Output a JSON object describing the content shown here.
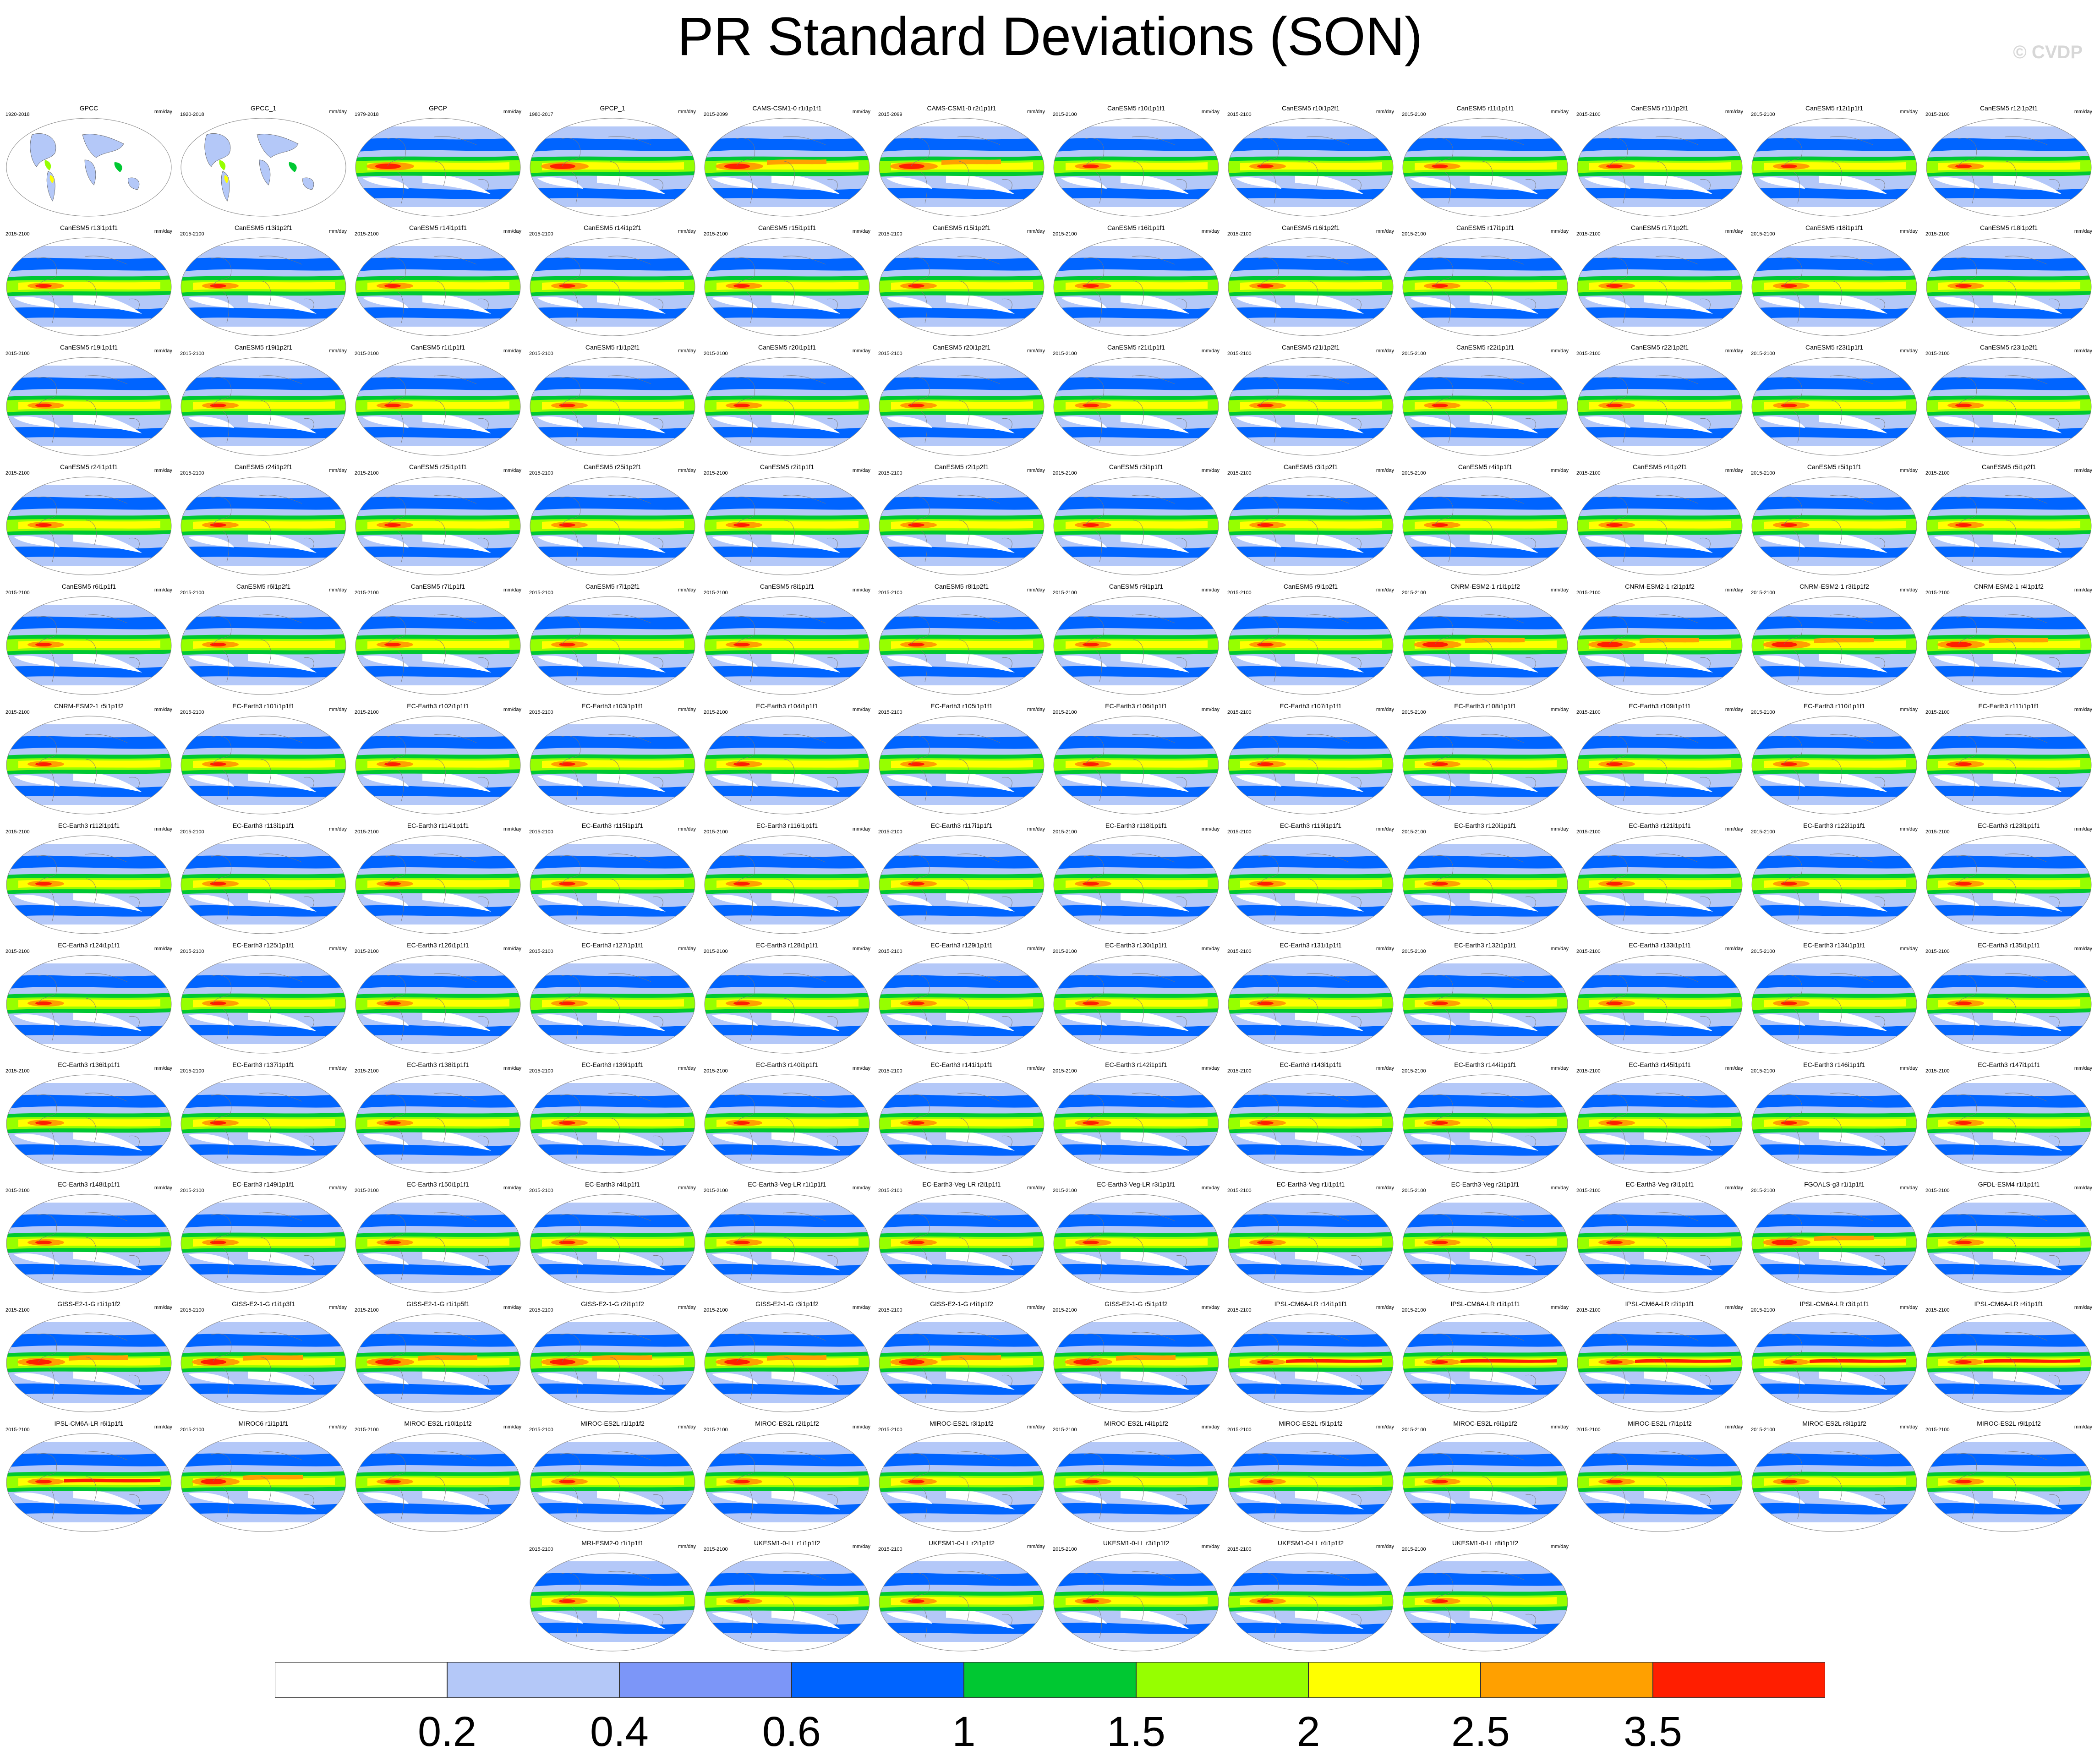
{
  "title": "PR Standard Deviations (SON)",
  "watermark": "© CVDP",
  "units": "mm/day",
  "colorbar": {
    "colors": [
      "#ffffff",
      "#b4c8f8",
      "#7c96f8",
      "#0064ff",
      "#00c832",
      "#96ff00",
      "#ffff00",
      "#ffa000",
      "#ff1e00"
    ],
    "labels": [
      "0.2",
      "0.4",
      "0.6",
      "1",
      "1.5",
      "2",
      "2.5",
      "3.5"
    ]
  },
  "panels": [
    {
      "title": "GPCC",
      "years": "1920-2018",
      "type": "obs_land"
    },
    {
      "title": "GPCC_1",
      "years": "1920-2018",
      "type": "obs_land"
    },
    {
      "title": "GPCP",
      "years": "1979-2018",
      "type": "obs"
    },
    {
      "title": "GPCP_1",
      "years": "1980-2017",
      "type": "obs"
    },
    {
      "title": "CAMS-CSM1-0 r1i1p1f1",
      "years": "2015-2099",
      "type": "model_hi"
    },
    {
      "title": "CAMS-CSM1-0 r2i1p1f1",
      "years": "2015-2099",
      "type": "model_hi"
    },
    {
      "title": "CanESM5 r10i1p1f1",
      "years": "2015-2100",
      "type": "model"
    },
    {
      "title": "CanESM5 r10i1p2f1",
      "years": "2015-2100",
      "type": "model"
    },
    {
      "title": "CanESM5 r11i1p1f1",
      "years": "2015-2100",
      "type": "model"
    },
    {
      "title": "CanESM5 r11i1p2f1",
      "years": "2015-2100",
      "type": "model"
    },
    {
      "title": "CanESM5 r12i1p1f1",
      "years": "2015-2100",
      "type": "model"
    },
    {
      "title": "CanESM5 r12i1p2f1",
      "years": "2015-2100",
      "type": "model"
    },
    {
      "title": "CanESM5 r13i1p1f1",
      "years": "2015-2100",
      "type": "model"
    },
    {
      "title": "CanESM5 r13i1p2f1",
      "years": "2015-2100",
      "type": "model"
    },
    {
      "title": "CanESM5 r14i1p1f1",
      "years": "2015-2100",
      "type": "model"
    },
    {
      "title": "CanESM5 r14i1p2f1",
      "years": "2015-2100",
      "type": "model"
    },
    {
      "title": "CanESM5 r15i1p1f1",
      "years": "2015-2100",
      "type": "model"
    },
    {
      "title": "CanESM5 r15i1p2f1",
      "years": "2015-2100",
      "type": "model"
    },
    {
      "title": "CanESM5 r16i1p1f1",
      "years": "2015-2100",
      "type": "model"
    },
    {
      "title": "CanESM5 r16i1p2f1",
      "years": "2015-2100",
      "type": "model"
    },
    {
      "title": "CanESM5 r17i1p1f1",
      "years": "2015-2100",
      "type": "model"
    },
    {
      "title": "CanESM5 r17i1p2f1",
      "years": "2015-2100",
      "type": "model"
    },
    {
      "title": "CanESM5 r18i1p1f1",
      "years": "2015-2100",
      "type": "model"
    },
    {
      "title": "CanESM5 r18i1p2f1",
      "years": "2015-2100",
      "type": "model"
    },
    {
      "title": "CanESM5 r19i1p1f1",
      "years": "2015-2100",
      "type": "model"
    },
    {
      "title": "CanESM5 r19i1p2f1",
      "years": "2015-2100",
      "type": "model"
    },
    {
      "title": "CanESM5 r1i1p1f1",
      "years": "2015-2100",
      "type": "model"
    },
    {
      "title": "CanESM5 r1i1p2f1",
      "years": "2015-2100",
      "type": "model"
    },
    {
      "title": "CanESM5 r20i1p1f1",
      "years": "2015-2100",
      "type": "model"
    },
    {
      "title": "CanESM5 r20i1p2f1",
      "years": "2015-2100",
      "type": "model"
    },
    {
      "title": "CanESM5 r21i1p1f1",
      "years": "2015-2100",
      "type": "model"
    },
    {
      "title": "CanESM5 r21i1p2f1",
      "years": "2015-2100",
      "type": "model"
    },
    {
      "title": "CanESM5 r22i1p1f1",
      "years": "2015-2100",
      "type": "model"
    },
    {
      "title": "CanESM5 r22i1p2f1",
      "years": "2015-2100",
      "type": "model"
    },
    {
      "title": "CanESM5 r23i1p1f1",
      "years": "2015-2100",
      "type": "model"
    },
    {
      "title": "CanESM5 r23i1p2f1",
      "years": "2015-2100",
      "type": "model"
    },
    {
      "title": "CanESM5 r24i1p1f1",
      "years": "2015-2100",
      "type": "model"
    },
    {
      "title": "CanESM5 r24i1p2f1",
      "years": "2015-2100",
      "type": "model"
    },
    {
      "title": "CanESM5 r25i1p1f1",
      "years": "2015-2100",
      "type": "model"
    },
    {
      "title": "CanESM5 r25i1p2f1",
      "years": "2015-2100",
      "type": "model"
    },
    {
      "title": "CanESM5 r2i1p1f1",
      "years": "2015-2100",
      "type": "model"
    },
    {
      "title": "CanESM5 r2i1p2f1",
      "years": "2015-2100",
      "type": "model"
    },
    {
      "title": "CanESM5 r3i1p1f1",
      "years": "2015-2100",
      "type": "model"
    },
    {
      "title": "CanESM5 r3i1p2f1",
      "years": "2015-2100",
      "type": "model"
    },
    {
      "title": "CanESM5 r4i1p1f1",
      "years": "2015-2100",
      "type": "model"
    },
    {
      "title": "CanESM5 r4i1p2f1",
      "years": "2015-2100",
      "type": "model"
    },
    {
      "title": "CanESM5 r5i1p1f1",
      "years": "2015-2100",
      "type": "model"
    },
    {
      "title": "CanESM5 r5i1p2f1",
      "years": "2015-2100",
      "type": "model"
    },
    {
      "title": "CanESM5 r6i1p1f1",
      "years": "2015-2100",
      "type": "model"
    },
    {
      "title": "CanESM5 r6i1p2f1",
      "years": "2015-2100",
      "type": "model"
    },
    {
      "title": "CanESM5 r7i1p1f1",
      "years": "2015-2100",
      "type": "model"
    },
    {
      "title": "CanESM5 r7i1p2f1",
      "years": "2015-2100",
      "type": "model"
    },
    {
      "title": "CanESM5 r8i1p1f1",
      "years": "2015-2100",
      "type": "model"
    },
    {
      "title": "CanESM5 r8i1p2f1",
      "years": "2015-2100",
      "type": "model"
    },
    {
      "title": "CanESM5 r9i1p1f1",
      "years": "2015-2100",
      "type": "model"
    },
    {
      "title": "CanESM5 r9i1p2f1",
      "years": "2015-2100",
      "type": "model"
    },
    {
      "title": "CNRM-ESM2-1 r1i1p1f2",
      "years": "2015-2100",
      "type": "model_hi"
    },
    {
      "title": "CNRM-ESM2-1 r2i1p1f2",
      "years": "2015-2100",
      "type": "model_hi"
    },
    {
      "title": "CNRM-ESM2-1 r3i1p1f2",
      "years": "2015-2100",
      "type": "model_hi"
    },
    {
      "title": "CNRM-ESM2-1 r4i1p1f2",
      "years": "2015-2100",
      "type": "model_hi"
    },
    {
      "title": "CNRM-ESM2-1 r5i1p1f2",
      "years": "2015-2100",
      "type": "model"
    },
    {
      "title": "EC-Earth3 r101i1p1f1",
      "years": "2015-2100",
      "type": "model"
    },
    {
      "title": "EC-Earth3 r102i1p1f1",
      "years": "2015-2100",
      "type": "model"
    },
    {
      "title": "EC-Earth3 r103i1p1f1",
      "years": "2015-2100",
      "type": "model"
    },
    {
      "title": "EC-Earth3 r104i1p1f1",
      "years": "2015-2100",
      "type": "model"
    },
    {
      "title": "EC-Earth3 r105i1p1f1",
      "years": "2015-2100",
      "type": "model"
    },
    {
      "title": "EC-Earth3 r106i1p1f1",
      "years": "2015-2100",
      "type": "model"
    },
    {
      "title": "EC-Earth3 r107i1p1f1",
      "years": "2015-2100",
      "type": "model"
    },
    {
      "title": "EC-Earth3 r108i1p1f1",
      "years": "2015-2100",
      "type": "model"
    },
    {
      "title": "EC-Earth3 r109i1p1f1",
      "years": "2015-2100",
      "type": "model"
    },
    {
      "title": "EC-Earth3 r110i1p1f1",
      "years": "2015-2100",
      "type": "model"
    },
    {
      "title": "EC-Earth3 r111i1p1f1",
      "years": "2015-2100",
      "type": "model"
    },
    {
      "title": "EC-Earth3 r112i1p1f1",
      "years": "2015-2100",
      "type": "model"
    },
    {
      "title": "EC-Earth3 r113i1p1f1",
      "years": "2015-2100",
      "type": "model"
    },
    {
      "title": "EC-Earth3 r114i1p1f1",
      "years": "2015-2100",
      "type": "model"
    },
    {
      "title": "EC-Earth3 r115i1p1f1",
      "years": "2015-2100",
      "type": "model"
    },
    {
      "title": "EC-Earth3 r116i1p1f1",
      "years": "2015-2100",
      "type": "model"
    },
    {
      "title": "EC-Earth3 r117i1p1f1",
      "years": "2015-2100",
      "type": "model"
    },
    {
      "title": "EC-Earth3 r118i1p1f1",
      "years": "2015-2100",
      "type": "model"
    },
    {
      "title": "EC-Earth3 r119i1p1f1",
      "years": "2015-2100",
      "type": "model"
    },
    {
      "title": "EC-Earth3 r120i1p1f1",
      "years": "2015-2100",
      "type": "model"
    },
    {
      "title": "EC-Earth3 r121i1p1f1",
      "years": "2015-2100",
      "type": "model"
    },
    {
      "title": "EC-Earth3 r122i1p1f1",
      "years": "2015-2100",
      "type": "model"
    },
    {
      "title": "EC-Earth3 r123i1p1f1",
      "years": "2015-2100",
      "type": "model"
    },
    {
      "title": "EC-Earth3 r124i1p1f1",
      "years": "2015-2100",
      "type": "model"
    },
    {
      "title": "EC-Earth3 r125i1p1f1",
      "years": "2015-2100",
      "type": "model"
    },
    {
      "title": "EC-Earth3 r126i1p1f1",
      "years": "2015-2100",
      "type": "model"
    },
    {
      "title": "EC-Earth3 r127i1p1f1",
      "years": "2015-2100",
      "type": "model"
    },
    {
      "title": "EC-Earth3 r128i1p1f1",
      "years": "2015-2100",
      "type": "model"
    },
    {
      "title": "EC-Earth3 r129i1p1f1",
      "years": "2015-2100",
      "type": "model"
    },
    {
      "title": "EC-Earth3 r130i1p1f1",
      "years": "2015-2100",
      "type": "model"
    },
    {
      "title": "EC-Earth3 r131i1p1f1",
      "years": "2015-2100",
      "type": "model"
    },
    {
      "title": "EC-Earth3 r132i1p1f1",
      "years": "2015-2100",
      "type": "model"
    },
    {
      "title": "EC-Earth3 r133i1p1f1",
      "years": "2015-2100",
      "type": "model"
    },
    {
      "title": "EC-Earth3 r134i1p1f1",
      "years": "2015-2100",
      "type": "model"
    },
    {
      "title": "EC-Earth3 r135i1p1f1",
      "years": "2015-2100",
      "type": "model"
    },
    {
      "title": "EC-Earth3 r136i1p1f1",
      "years": "2015-2100",
      "type": "model"
    },
    {
      "title": "EC-Earth3 r137i1p1f1",
      "years": "2015-2100",
      "type": "model"
    },
    {
      "title": "EC-Earth3 r138i1p1f1",
      "years": "2015-2100",
      "type": "model"
    },
    {
      "title": "EC-Earth3 r139i1p1f1",
      "years": "2015-2100",
      "type": "model"
    },
    {
      "title": "EC-Earth3 r140i1p1f1",
      "years": "2015-2100",
      "type": "model"
    },
    {
      "title": "EC-Earth3 r141i1p1f1",
      "years": "2015-2100",
      "type": "model"
    },
    {
      "title": "EC-Earth3 r142i1p1f1",
      "years": "2015-2100",
      "type": "model"
    },
    {
      "title": "EC-Earth3 r143i1p1f1",
      "years": "2015-2100",
      "type": "model"
    },
    {
      "title": "EC-Earth3 r144i1p1f1",
      "years": "2015-2100",
      "type": "model"
    },
    {
      "title": "EC-Earth3 r145i1p1f1",
      "years": "2015-2100",
      "type": "model"
    },
    {
      "title": "EC-Earth3 r146i1p1f1",
      "years": "2015-2100",
      "type": "model"
    },
    {
      "title": "EC-Earth3 r147i1p1f1",
      "years": "2015-2100",
      "type": "model"
    },
    {
      "title": "EC-Earth3 r148i1p1f1",
      "years": "2015-2100",
      "type": "model"
    },
    {
      "title": "EC-Earth3 r149i1p1f1",
      "years": "2015-2100",
      "type": "model"
    },
    {
      "title": "EC-Earth3 r150i1p1f1",
      "years": "2015-2100",
      "type": "model"
    },
    {
      "title": "EC-Earth3 r4i1p1f1",
      "years": "2015-2100",
      "type": "model"
    },
    {
      "title": "EC-Earth3-Veg-LR r1i1p1f1",
      "years": "2015-2100",
      "type": "model"
    },
    {
      "title": "EC-Earth3-Veg-LR r2i1p1f1",
      "years": "2015-2100",
      "type": "model"
    },
    {
      "title": "EC-Earth3-Veg-LR r3i1p1f1",
      "years": "2015-2100",
      "type": "model"
    },
    {
      "title": "EC-Earth3-Veg r1i1p1f1",
      "years": "2015-2100",
      "type": "model"
    },
    {
      "title": "EC-Earth3-Veg r2i1p1f1",
      "years": "2015-2100",
      "type": "model"
    },
    {
      "title": "EC-Earth3-Veg r3i1p1f1",
      "years": "2015-2100",
      "type": "model"
    },
    {
      "title": "FGOALS-g3 r1i1p1f1",
      "years": "2015-2100",
      "type": "model_hi"
    },
    {
      "title": "GFDL-ESM4 r1i1p1f1",
      "years": "2015-2100",
      "type": "model"
    },
    {
      "title": "GISS-E2-1-G r1i1p1f2",
      "years": "2015-2100",
      "type": "model_hi"
    },
    {
      "title": "GISS-E2-1-G r1i1p3f1",
      "years": "2015-2100",
      "type": "model_hi"
    },
    {
      "title": "GISS-E2-1-G r1i1p5f1",
      "years": "2015-2100",
      "type": "model_hi"
    },
    {
      "title": "GISS-E2-1-G r2i1p1f2",
      "years": "2015-2100",
      "type": "model_hi"
    },
    {
      "title": "GISS-E2-1-G r3i1p1f2",
      "years": "2015-2100",
      "type": "model_hi"
    },
    {
      "title": "GISS-E2-1-G r4i1p1f2",
      "years": "2015-2100",
      "type": "model_hi"
    },
    {
      "title": "GISS-E2-1-G r5i1p1f2",
      "years": "2015-2100",
      "type": "model_hi"
    },
    {
      "title": "IPSL-CM6A-LR r14i1p1f1",
      "years": "2015-2100",
      "type": "model_band"
    },
    {
      "title": "IPSL-CM6A-LR r1i1p1f1",
      "years": "2015-2100",
      "type": "model_band"
    },
    {
      "title": "IPSL-CM6A-LR r2i1p1f1",
      "years": "2015-2100",
      "type": "model_band"
    },
    {
      "title": "IPSL-CM6A-LR r3i1p1f1",
      "years": "2015-2100",
      "type": "model_band"
    },
    {
      "title": "IPSL-CM6A-LR r4i1p1f1",
      "years": "2015-2100",
      "type": "model_band"
    },
    {
      "title": "IPSL-CM6A-LR r6i1p1f1",
      "years": "2015-2100",
      "type": "model_band"
    },
    {
      "title": "MIROC6 r1i1p1f1",
      "years": "2015-2100",
      "type": "model_hi"
    },
    {
      "title": "MIROC-ES2L r10i1p1f2",
      "years": "2015-2100",
      "type": "model"
    },
    {
      "title": "MIROC-ES2L r1i1p1f2",
      "years": "2015-2100",
      "type": "model"
    },
    {
      "title": "MIROC-ES2L r2i1p1f2",
      "years": "2015-2100",
      "type": "model"
    },
    {
      "title": "MIROC-ES2L r3i1p1f2",
      "years": "2015-2100",
      "type": "model"
    },
    {
      "title": "MIROC-ES2L r4i1p1f2",
      "years": "2015-2100",
      "type": "model"
    },
    {
      "title": "MIROC-ES2L r5i1p1f2",
      "years": "2015-2100",
      "type": "model"
    },
    {
      "title": "MIROC-ES2L r6i1p1f2",
      "years": "2015-2100",
      "type": "model"
    },
    {
      "title": "MIROC-ES2L r7i1p1f2",
      "years": "2015-2100",
      "type": "model"
    },
    {
      "title": "MIROC-ES2L r8i1p1f2",
      "years": "2015-2100",
      "type": "model"
    },
    {
      "title": "MIROC-ES2L r9i1p1f2",
      "years": "2015-2100",
      "type": "model"
    },
    {
      "title": "MRI-ESM2-0 r1i1p1f1",
      "years": "2015-2100",
      "type": "model"
    },
    {
      "title": "UKESM1-0-LL r1i1p1f2",
      "years": "2015-2100",
      "type": "model"
    },
    {
      "title": "UKESM1-0-LL r2i1p1f2",
      "years": "2015-2100",
      "type": "model"
    },
    {
      "title": "UKESM1-0-LL r3i1p1f2",
      "years": "2015-2100",
      "type": "model"
    },
    {
      "title": "UKESM1-0-LL r4i1p1f2",
      "years": "2015-2100",
      "type": "model"
    },
    {
      "title": "UKESM1-0-LL r8i1p1f2",
      "years": "2015-2100",
      "type": "model"
    }
  ]
}
